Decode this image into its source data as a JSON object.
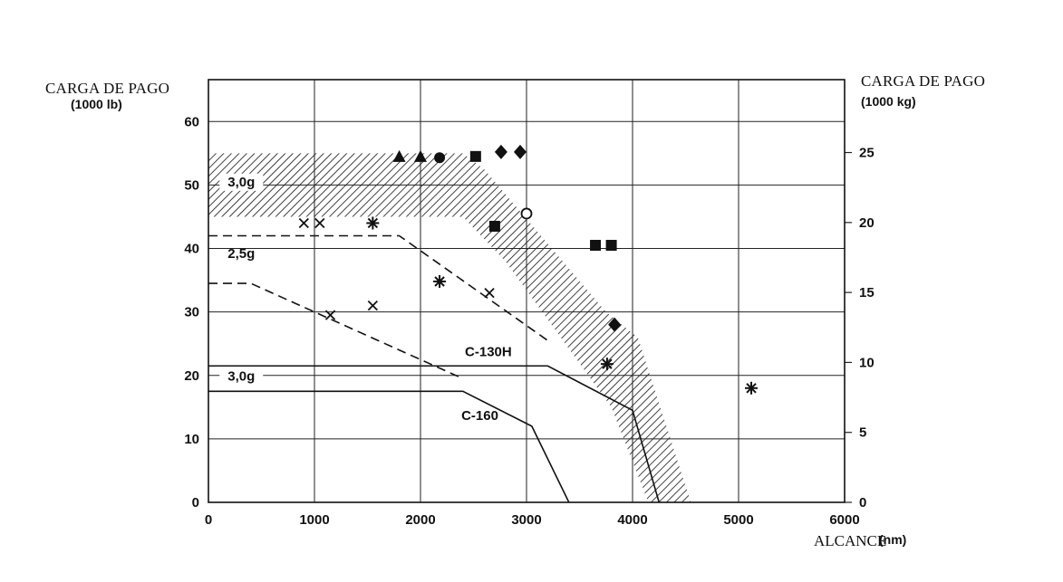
{
  "chart_data": {
    "type": "scatter",
    "title": "",
    "xlabel": "ALCANCE",
    "xlabel_unit": "(nm)",
    "ylabel_left": "CARGA DE PAGO",
    "ylabel_left_unit": "(1000 lb)",
    "ylabel_right": "CARGA DE PAGO",
    "ylabel_right_unit": "(1000 kg)",
    "xlim": [
      0,
      6000
    ],
    "ylim_left": [
      0,
      60
    ],
    "ylim_right": [
      0,
      25
    ],
    "x_ticks": [
      0,
      1000,
      2000,
      3000,
      4000,
      5000,
      6000
    ],
    "y_ticks_left": [
      0,
      10,
      20,
      30,
      40,
      50,
      60
    ],
    "y_ticks_right": [
      0,
      5,
      10,
      15,
      20,
      25
    ],
    "grid": true,
    "lines": [
      {
        "name": "C-130H",
        "style": "solid",
        "x": [
          0,
          3200,
          3200,
          4000,
          4250
        ],
        "y": [
          21.5,
          21.5,
          21.5,
          14.5,
          0
        ]
      },
      {
        "name": "C-160",
        "style": "solid",
        "x": [
          0,
          2400,
          3050,
          3400
        ],
        "y": [
          17.5,
          17.5,
          12,
          0
        ]
      },
      {
        "name": "dashed-upper",
        "style": "dashed",
        "x": [
          0,
          1800,
          3200
        ],
        "y": [
          42,
          42,
          25.5
        ]
      },
      {
        "name": "dashed-lower",
        "style": "dashed",
        "x": [
          0,
          400,
          2400
        ],
        "y": [
          34.5,
          34.5,
          19.5
        ]
      }
    ],
    "band": {
      "upper_x": [
        0,
        2400,
        2600,
        3750,
        4050,
        4550
      ],
      "upper_y": [
        55,
        55,
        52.5,
        30,
        26,
        0
      ],
      "lower_x": [
        0,
        2400,
        2800,
        3800,
        4150
      ],
      "lower_y": [
        45,
        45,
        38,
        15,
        0
      ]
    },
    "annotations": [
      "3,0g",
      "2,5g",
      "C-130H",
      "3,0g",
      "C-160"
    ],
    "series": [
      {
        "marker": "triangle",
        "x": [
          1800,
          2000
        ],
        "y": [
          54.5,
          54.5
        ]
      },
      {
        "marker": "circle-filled",
        "x": [
          2180
        ],
        "y": [
          54.3
        ]
      },
      {
        "marker": "square",
        "x": [
          2520,
          2700,
          3650,
          3800
        ],
        "y": [
          54.5,
          43.5,
          40.5,
          40.5
        ]
      },
      {
        "marker": "diamond",
        "x": [
          2760,
          2940,
          3830
        ],
        "y": [
          55.2,
          55.2,
          28
        ]
      },
      {
        "marker": "x",
        "x": [
          900,
          1050,
          1150,
          1550,
          2650
        ],
        "y": [
          44,
          44,
          29.5,
          31,
          33
        ]
      },
      {
        "marker": "asterisk",
        "x": [
          1550,
          2180,
          3760,
          5120
        ],
        "y": [
          44,
          34.8,
          21.8,
          18
        ]
      },
      {
        "marker": "circle-open",
        "x": [
          3000
        ],
        "y": [
          45.5
        ]
      }
    ]
  }
}
